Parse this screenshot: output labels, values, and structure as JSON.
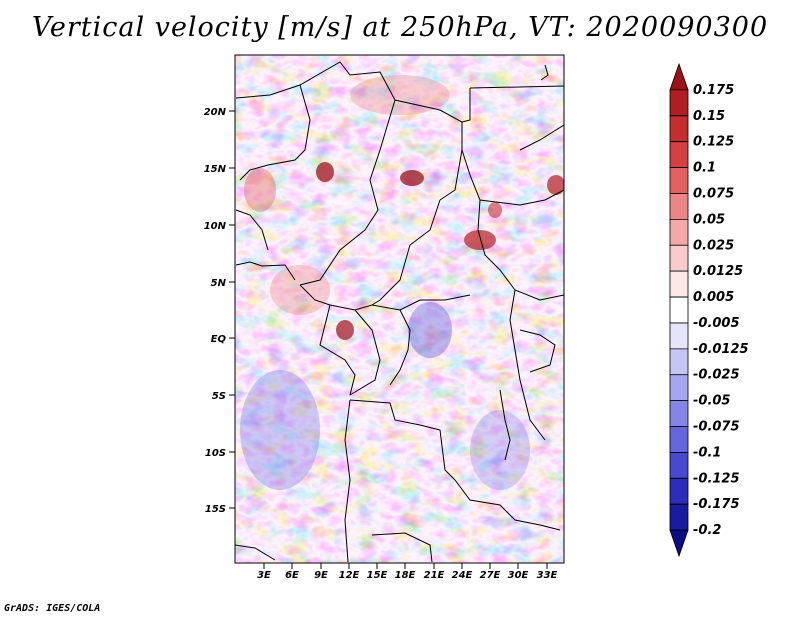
{
  "title": "Vertical velocity [m/s] at 250hPa, VT: 2020090300",
  "credit": "GrADS: IGES/COLA",
  "map": {
    "lat_ticks": [
      "20N",
      "15N",
      "10N",
      "5N",
      "EQ",
      "5S",
      "10S",
      "15S"
    ],
    "lon_ticks": [
      "3E",
      "6E",
      "9E",
      "12E",
      "15E",
      "18E",
      "21E",
      "24E",
      "27E",
      "30E",
      "33E"
    ]
  },
  "colorbar": {
    "levels": [
      "0.175",
      "0.15",
      "0.125",
      "0.1",
      "0.075",
      "0.05",
      "0.025",
      "0.0125",
      "0.005",
      "-0.005",
      "-0.0125",
      "-0.025",
      "-0.05",
      "-0.075",
      "-0.1",
      "-0.125",
      "-0.175",
      "-0.2"
    ],
    "colors": [
      "#9c1118",
      "#b01d22",
      "#c52d30",
      "#d64040",
      "#e26060",
      "#ec8585",
      "#f4a9a9",
      "#f9cbcb",
      "#fde8e8",
      "#ffffff",
      "#e4e4fb",
      "#c6c6f6",
      "#a6a6f0",
      "#8585e8",
      "#6565de",
      "#4848d0",
      "#2d2dbd",
      "#1a1aa3",
      "#0c0c85"
    ]
  }
}
